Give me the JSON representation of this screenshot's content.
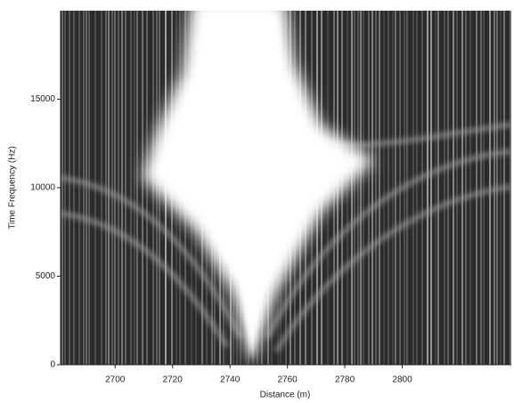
{
  "chart_data": {
    "type": "heatmap",
    "x_label": "Distance (m)",
    "y_label": "Time Frequency (Hz)",
    "xlim": [
      2681,
      2838
    ],
    "xticks": [
      2700,
      2720,
      2740,
      2760,
      2780,
      2800
    ],
    "ylim": [
      0,
      20000
    ],
    "yticks": [
      0,
      5000,
      10000,
      15000
    ]
  }
}
